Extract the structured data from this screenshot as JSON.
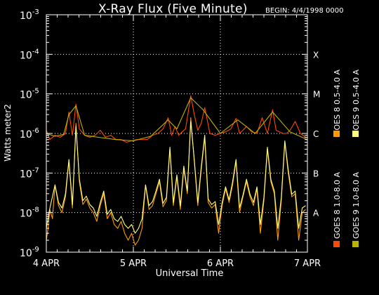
{
  "title": "X-Ray Flux (Five Minute)",
  "begin_label": "BEGIN: 4/4/1998 0000",
  "chart_data": {
    "type": "line",
    "title": "X-Ray Flux (Five Minute)",
    "xlabel": "Universal Time",
    "ylabel": "Watts meter2",
    "x_unit": "days since 4/4/1998 0000",
    "xlim": [
      0,
      3
    ],
    "ylim": [
      1e-09,
      0.001
    ],
    "y_scale": "log",
    "x_ticks": [
      {
        "label": "4 APR",
        "x": 0
      },
      {
        "label": "5 APR",
        "x": 1
      },
      {
        "label": "6 APR",
        "x": 2
      },
      {
        "label": "7 APR",
        "x": 3
      }
    ],
    "y_ticks": [
      {
        "base": "10",
        "exp": "-9",
        "y": 1e-09
      },
      {
        "base": "10",
        "exp": "-8",
        "y": 1e-08
      },
      {
        "base": "10",
        "exp": "-7",
        "y": 1e-07
      },
      {
        "base": "10",
        "exp": "-6",
        "y": 1e-06
      },
      {
        "base": "10",
        "exp": "-5",
        "y": 1e-05
      },
      {
        "base": "10",
        "exp": "-4",
        "y": 0.0001
      },
      {
        "base": "10",
        "exp": "-3",
        "y": 0.001
      }
    ],
    "flare_classes": [
      {
        "label": "A",
        "y": 1e-08
      },
      {
        "label": "B",
        "y": 1e-07
      },
      {
        "label": "C",
        "y": 1e-06
      },
      {
        "label": "M",
        "y": 1e-05
      },
      {
        "label": "X",
        "y": 0.0001
      }
    ],
    "grid": true,
    "legend_position": "right (vertical)",
    "series": [
      {
        "name": "GOES 8 1.0-8.0 A",
        "color": "#ff4a00",
        "x": [
          0.0,
          0.04,
          0.1,
          0.16,
          0.22,
          0.26,
          0.3,
          0.34,
          0.38,
          0.44,
          0.5,
          0.56,
          0.62,
          0.68,
          0.74,
          0.8,
          0.86,
          0.92,
          0.98,
          1.04,
          1.1,
          1.16,
          1.22,
          1.28,
          1.34,
          1.4,
          1.44,
          1.48,
          1.52,
          1.56,
          1.6,
          1.66,
          1.7,
          1.74,
          1.78,
          1.82,
          1.88,
          1.94,
          2.0,
          2.06,
          2.12,
          2.18,
          2.22,
          2.26,
          2.3,
          2.36,
          2.42,
          2.48,
          2.54,
          2.6,
          2.64,
          2.68,
          2.72,
          2.76,
          2.8,
          2.86,
          2.92,
          2.98
        ],
        "values": [
          1.2e-06,
          7e-07,
          9e-07,
          8e-07,
          1e-06,
          3.5e-06,
          9e-07,
          5.5e-06,
          1.3e-06,
          9e-07,
          8e-07,
          9e-07,
          1.2e-06,
          8e-07,
          9e-07,
          7e-07,
          7e-07,
          6e-07,
          6.5e-07,
          7e-07,
          7e-07,
          7e-07,
          9e-07,
          1e-06,
          1.3e-06,
          2.5e-06,
          9e-07,
          1.5e-06,
          9e-07,
          1.1e-06,
          1.3e-06,
          9e-06,
          3e-06,
          1.2e-06,
          1.8e-06,
          4.5e-06,
          1e-06,
          9e-07,
          1e-06,
          1.1e-06,
          1.3e-06,
          2.4e-06,
          1e-06,
          1.2e-06,
          1.5e-06,
          1.1e-06,
          1e-06,
          2.5e-06,
          1e-06,
          4e-06,
          1.2e-06,
          1.1e-06,
          1e-06,
          1e-06,
          1.2e-06,
          2e-06,
          1e-06,
          8e-07
        ]
      },
      {
        "name": "GOES 8 0.5-4.0 A",
        "color": "#ff9c00",
        "x": [
          0.0,
          0.02,
          0.04,
          0.07,
          0.1,
          0.14,
          0.18,
          0.22,
          0.26,
          0.3,
          0.34,
          0.38,
          0.42,
          0.46,
          0.5,
          0.54,
          0.58,
          0.62,
          0.66,
          0.7,
          0.74,
          0.78,
          0.82,
          0.86,
          0.9,
          0.94,
          0.98,
          1.02,
          1.06,
          1.1,
          1.14,
          1.18,
          1.22,
          1.26,
          1.3,
          1.34,
          1.38,
          1.42,
          1.46,
          1.5,
          1.54,
          1.58,
          1.62,
          1.66,
          1.7,
          1.74,
          1.78,
          1.82,
          1.86,
          1.9,
          1.94,
          1.98,
          2.02,
          2.06,
          2.1,
          2.14,
          2.18,
          2.22,
          2.26,
          2.3,
          2.34,
          2.38,
          2.42,
          2.46,
          2.5,
          2.54,
          2.58,
          2.62,
          2.66,
          2.7,
          2.74,
          2.78,
          2.82,
          2.86,
          2.9,
          2.94,
          2.98
        ],
        "values": [
          2e-09,
          4e-09,
          1.2e-08,
          7e-09,
          5e-08,
          1.5e-08,
          1e-08,
          2.5e-08,
          2e-07,
          1.3e-08,
          1.8e-06,
          6e-08,
          1.6e-08,
          2.2e-08,
          1.3e-08,
          1e-08,
          6e-09,
          1.5e-08,
          3e-08,
          7e-09,
          1e-08,
          5e-09,
          4e-09,
          6e-09,
          3e-09,
          2e-09,
          3e-09,
          1.5e-09,
          2e-09,
          4e-09,
          5e-08,
          1.2e-08,
          1.5e-08,
          3e-08,
          6e-08,
          1.4e-08,
          2e-08,
          4e-07,
          1.5e-08,
          8e-08,
          1.2e-08,
          1.3e-07,
          3e-08,
          2.5e-06,
          2e-07,
          1.5e-08,
          1.2e-07,
          8e-07,
          1.8e-08,
          1.3e-08,
          1.6e-08,
          3e-09,
          1.5e-08,
          4e-08,
          1.8e-08,
          5e-08,
          2e-07,
          1e-08,
          2.5e-08,
          6e-08,
          2.5e-08,
          1.5e-08,
          4e-08,
          3e-09,
          2e-08,
          4e-07,
          6e-08,
          3e-08,
          2e-09,
          2e-08,
          6e-07,
          1e-07,
          2.5e-08,
          3e-08,
          2e-09,
          1e-08,
          1.2e-08
        ]
      },
      {
        "name": "GOES 9 1.0-8.0 A",
        "color": "#b8b400",
        "x": [
          0.0,
          0.1,
          0.2,
          0.26,
          0.34,
          0.44,
          0.6,
          0.8,
          1.0,
          1.2,
          1.4,
          1.5,
          1.66,
          1.8,
          2.0,
          2.2,
          2.4,
          2.6,
          2.8,
          3.0
        ],
        "values": [
          1e-06,
          8.5e-07,
          9.5e-07,
          3e-06,
          5e-06,
          9e-07,
          8e-07,
          7e-07,
          6.5e-07,
          8.5e-07,
          2.2e-06,
          1.3e-06,
          8e-06,
          4e-06,
          1e-06,
          2.2e-06,
          1e-06,
          3.5e-06,
          1.1e-06,
          7e-07
        ]
      },
      {
        "name": "GOES 9 0.5-4.0 A",
        "color": "#ffff80",
        "x": [
          0.0,
          0.03,
          0.06,
          0.1,
          0.14,
          0.18,
          0.22,
          0.26,
          0.3,
          0.34,
          0.38,
          0.42,
          0.46,
          0.5,
          0.54,
          0.58,
          0.62,
          0.66,
          0.7,
          0.74,
          0.78,
          0.82,
          0.86,
          0.9,
          0.94,
          0.98,
          1.02,
          1.06,
          1.1,
          1.14,
          1.18,
          1.22,
          1.26,
          1.3,
          1.34,
          1.38,
          1.42,
          1.46,
          1.5,
          1.54,
          1.58,
          1.62,
          1.66,
          1.7,
          1.74,
          1.78,
          1.82,
          1.86,
          1.9,
          1.94,
          1.98,
          2.02,
          2.06,
          2.1,
          2.14,
          2.18,
          2.22,
          2.26,
          2.3,
          2.34,
          2.38,
          2.42,
          2.46,
          2.5,
          2.54,
          2.58,
          2.62,
          2.66,
          2.7,
          2.74,
          2.78,
          2.82,
          2.86,
          2.9,
          2.94,
          2.98
        ],
        "values": [
          4e-09,
          1e-08,
          2e-08,
          5e-08,
          1.8e-08,
          1.3e-08,
          3e-08,
          2.2e-07,
          1.6e-08,
          1.5e-06,
          7e-08,
          2e-08,
          2.6e-08,
          1.6e-08,
          1.3e-08,
          8e-09,
          1.8e-08,
          3.5e-08,
          9e-09,
          1.2e-08,
          7e-09,
          6e-09,
          8e-09,
          5e-09,
          4e-09,
          5e-09,
          3e-09,
          4e-09,
          7e-09,
          5e-08,
          1.5e-08,
          1.9e-08,
          3.5e-08,
          7e-08,
          1.7e-08,
          2.4e-08,
          4.5e-07,
          1.8e-08,
          9e-08,
          1.5e-08,
          1.5e-07,
          3.5e-08,
          2e-06,
          2.2e-07,
          1.8e-08,
          1.4e-07,
          9e-07,
          2.2e-08,
          1.6e-08,
          1.9e-08,
          5e-09,
          1.8e-08,
          4.5e-08,
          2.1e-08,
          6e-08,
          2.2e-07,
          1.3e-08,
          2.8e-08,
          7e-08,
          2.9e-08,
          1.8e-08,
          4.5e-08,
          5e-09,
          2.4e-08,
          4.5e-07,
          7e-08,
          3.5e-08,
          4e-09,
          2.4e-08,
          6.5e-07,
          1.2e-07,
          2.9e-08,
          3.5e-08,
          4e-09,
          1.3e-08,
          1.5e-08
        ]
      }
    ]
  }
}
